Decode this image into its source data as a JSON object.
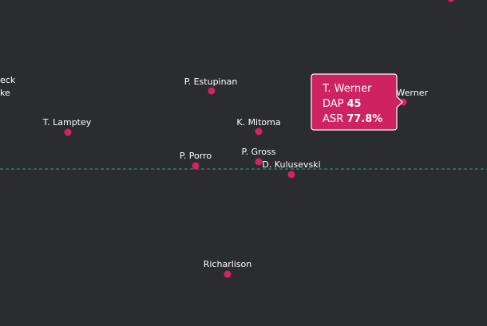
{
  "points": [
    {
      "label": "eck"
    },
    {
      "label": "ke"
    },
    {
      "label": "P. Estupinan"
    },
    {
      "label": "T. Lamptey"
    },
    {
      "label": "K. Mitoma"
    },
    {
      "label": "P. Porro"
    },
    {
      "label": "P. Gross"
    },
    {
      "label": "D. Kulusevski"
    },
    {
      "label": "Richarlison"
    },
    {
      "label": "T. Werner"
    }
  ],
  "tooltip": {
    "name": "T. Werner",
    "rows": [
      {
        "label": "DAP",
        "value": "45"
      },
      {
        "label": "ASR",
        "value": "77.8%"
      }
    ]
  }
}
